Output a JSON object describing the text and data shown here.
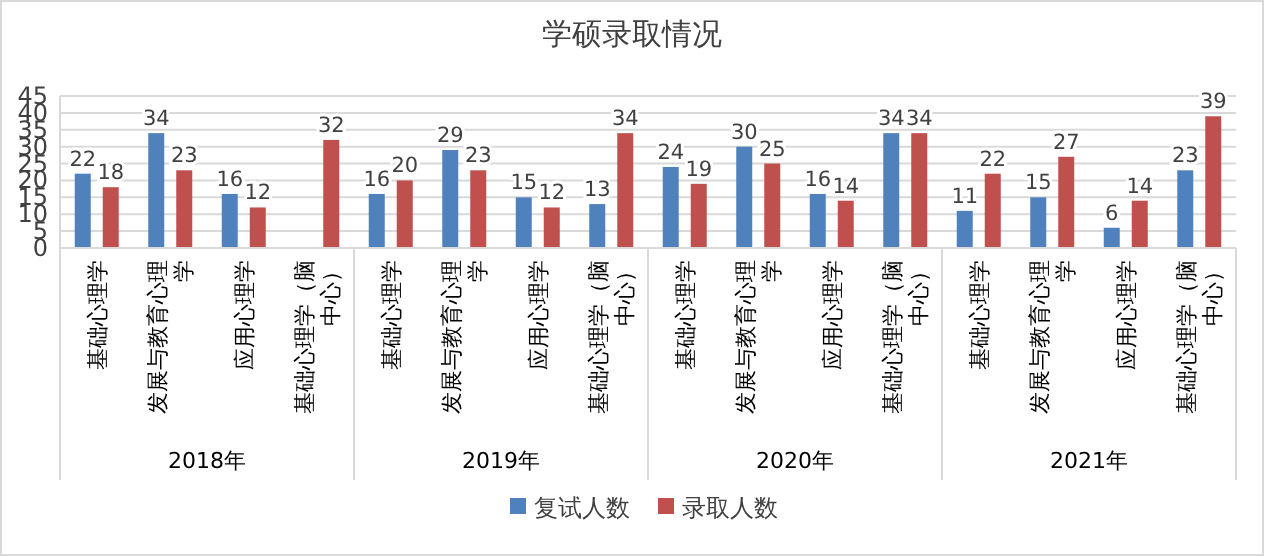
{
  "chart_data": {
    "type": "bar",
    "title": "学硕录取情况",
    "categories": [
      "基础心理学",
      "发展与教育心理学",
      "应用心理学",
      "基础心理学（脑中心）",
      "基础心理学",
      "发展与教育心理学",
      "应用心理学",
      "基础心理学（脑中心）",
      "基础心理学",
      "发展与教育心理学",
      "应用心理学",
      "基础心理学（脑中心）",
      "基础心理学",
      "发展与教育心理学",
      "应用心理学",
      "基础心理学（脑中心）"
    ],
    "series": [
      {
        "name": "复试人数",
        "color": "#4f81bd",
        "values": [
          22,
          34,
          16,
          null,
          16,
          29,
          15,
          13,
          24,
          30,
          16,
          34,
          11,
          15,
          6,
          23
        ]
      },
      {
        "name": "录取人数",
        "color": "#c0504d",
        "values": [
          18,
          23,
          12,
          32,
          20,
          23,
          12,
          34,
          19,
          25,
          14,
          34,
          22,
          27,
          14,
          39
        ]
      }
    ],
    "annotations": [
      "2018年",
      "2019年",
      "2020年",
      "2021年"
    ],
    "ylim": [
      0,
      45
    ],
    "yticks": [
      0,
      5,
      10,
      15,
      20,
      25,
      30,
      35,
      40,
      45
    ],
    "grid": "y",
    "legend": "bottom",
    "data_labels": true
  }
}
